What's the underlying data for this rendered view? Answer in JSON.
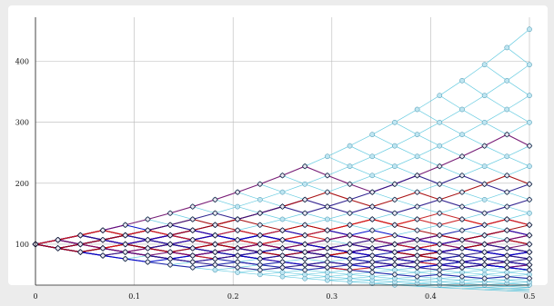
{
  "chart_data": {
    "type": "line",
    "title": "",
    "xlabel": "",
    "ylabel": "",
    "xlim": [
      0,
      0.5
    ],
    "ylim": [
      33,
      472
    ],
    "x_ticks": [
      0,
      0.1,
      0.2,
      0.3,
      0.4,
      0.5
    ],
    "x_tick_labels": [
      "0",
      "0.1",
      "0.2",
      "0.3",
      "0.4",
      "0.5"
    ],
    "y_ticks": [
      100,
      200,
      300,
      400
    ],
    "y_tick_labels": [
      "100",
      "200",
      "300",
      "400"
    ],
    "grid": true,
    "legend": "none",
    "colors": {
      "background": "#ffffff",
      "frame": "#e9e9e9",
      "grid": "#b8b8b8",
      "lattice": "#4fc3dc",
      "lattice_node_fill": "#bfe6f2",
      "lattice_node_stroke": "#3a8da8",
      "path_palette": [
        "#0000cc",
        "#1a1aa6",
        "#2d1488",
        "#7a0a6a",
        "#b00000",
        "#d81818"
      ],
      "path_node_stroke": "#101030"
    },
    "lattice": {
      "s0": 100,
      "up_factor": 1.071,
      "steps": 22,
      "dt": 0.022727
    },
    "paths": {
      "count": 36,
      "start": 100,
      "note_counts": "36 simulated sample paths on the recombining lattice"
    }
  }
}
